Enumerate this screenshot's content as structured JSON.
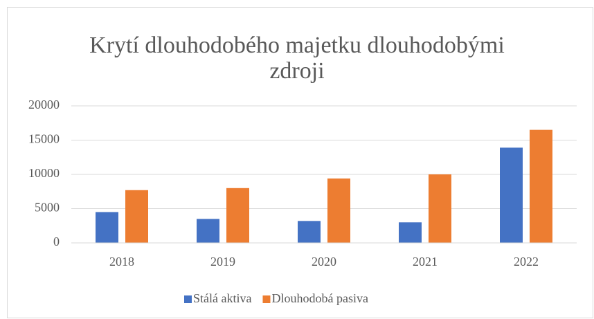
{
  "chart_data": {
    "type": "bar",
    "title": "Krytí dlouhodobého majetku dlouhodobými zdroji",
    "categories": [
      "2018",
      "2019",
      "2020",
      "2021",
      "2022"
    ],
    "series": [
      {
        "name": "Stálá aktiva",
        "color": "#4472c4",
        "values": [
          4500,
          3500,
          3200,
          3000,
          13900
        ]
      },
      {
        "name": "Dlouhodobá pasiva",
        "color": "#ed7d31",
        "values": [
          7700,
          8000,
          9400,
          10000,
          16500
        ]
      }
    ],
    "ylim": [
      0,
      20000
    ],
    "yticks": [
      0,
      5000,
      10000,
      15000,
      20000
    ],
    "grid": true,
    "legend": "bottom"
  }
}
